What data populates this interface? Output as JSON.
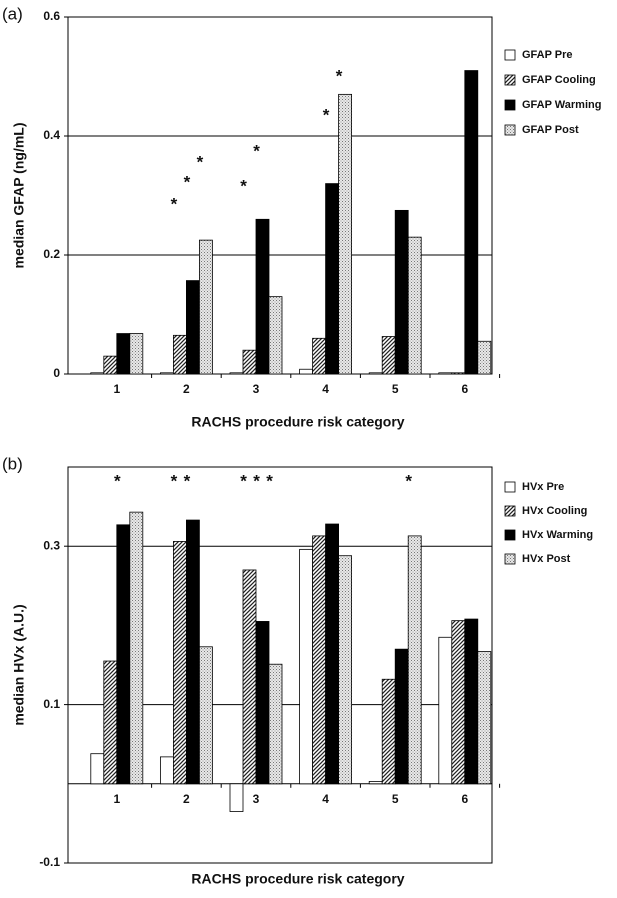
{
  "chart_data": [
    {
      "type": "bar",
      "panel": "(a)",
      "y_label": "median GFAP (ng/mL)",
      "x_label": "RACHS procedure risk category",
      "categories": [
        "1",
        "2",
        "3",
        "4",
        "5",
        "6"
      ],
      "ylim": [
        0,
        0.6
      ],
      "yticks": [
        0,
        0.2,
        0.4,
        0.6
      ],
      "grid": true,
      "legend": "right",
      "series": [
        {
          "name": "GFAP Pre",
          "color": "#000000",
          "pattern": "none",
          "values": [
            0.002,
            0.002,
            0.002,
            0.008,
            0.002,
            0.002
          ]
        },
        {
          "name": "GFAP Cooling",
          "color": "#000000",
          "pattern": "hatch",
          "values": [
            0.03,
            0.065,
            0.04,
            0.06,
            0.063,
            0.002
          ]
        },
        {
          "name": "GFAP Warming",
          "color": "#000000",
          "pattern": "solid",
          "values": [
            0.068,
            0.157,
            0.26,
            0.32,
            0.275,
            0.51
          ]
        },
        {
          "name": "GFAP Post",
          "color": "#000000",
          "pattern": "dots",
          "values": [
            0.068,
            0.225,
            0.13,
            0.47,
            0.23,
            0.055
          ]
        }
      ],
      "annotations": [
        {
          "text": "*",
          "category": "2",
          "series": "GFAP Cooling",
          "y": 0.284
        },
        {
          "text": "*",
          "category": "2",
          "series": "GFAP Warming",
          "y": 0.321
        },
        {
          "text": "*",
          "category": "2",
          "series": "GFAP Post",
          "y": 0.355
        },
        {
          "text": "*",
          "category": "3",
          "series": "GFAP Cooling",
          "y": 0.314
        },
        {
          "text": "*",
          "category": "3",
          "series": "GFAP Warming",
          "y": 0.373
        },
        {
          "text": "*",
          "category": "4",
          "series": "GFAP Warming",
          "y": 0.434
        },
        {
          "text": "*",
          "category": "4",
          "series": "GFAP Post",
          "y": 0.499
        }
      ]
    },
    {
      "type": "bar",
      "panel": "(b)",
      "y_label": "median HVx (A.U.)",
      "x_label": "RACHS procedure risk category",
      "categories": [
        "1",
        "2",
        "3",
        "4",
        "5",
        "6"
      ],
      "ylim": [
        -0.1,
        0.4
      ],
      "yticks": [
        -0.1,
        0.1,
        0.3
      ],
      "grid": true,
      "legend": "right",
      "series": [
        {
          "name": "HVx Pre",
          "color": "#000000",
          "pattern": "none",
          "values": [
            0.038,
            0.034,
            -0.035,
            0.296,
            0.003,
            0.185
          ]
        },
        {
          "name": "HVx Cooling",
          "color": "#000000",
          "pattern": "hatch",
          "values": [
            0.155,
            0.306,
            0.27,
            0.313,
            0.132,
            0.206
          ]
        },
        {
          "name": "HVx Warming",
          "color": "#000000",
          "pattern": "solid",
          "values": [
            0.327,
            0.333,
            0.205,
            0.328,
            0.17,
            0.208
          ]
        },
        {
          "name": "HVx Post",
          "color": "#000000",
          "pattern": "dots",
          "values": [
            0.343,
            0.173,
            0.151,
            0.288,
            0.313,
            0.167
          ]
        }
      ],
      "annotations": [
        {
          "text": "*",
          "category": "1",
          "series": "HVx Warming",
          "y": 0.381
        },
        {
          "text": "*",
          "category": "2",
          "series": "HVx Cooling",
          "y": 0.381
        },
        {
          "text": "*",
          "category": "2",
          "series": "HVx Warming",
          "y": 0.381
        },
        {
          "text": "*",
          "category": "3",
          "series": "HVx Cooling",
          "y": 0.381
        },
        {
          "text": "*",
          "category": "3",
          "series": "HVx Warming",
          "y": 0.381
        },
        {
          "text": "*",
          "category": "3",
          "series": "HVx Post",
          "y": 0.381
        },
        {
          "text": "*",
          "category": "5",
          "series": "HVx Post",
          "y": 0.381
        }
      ]
    }
  ]
}
